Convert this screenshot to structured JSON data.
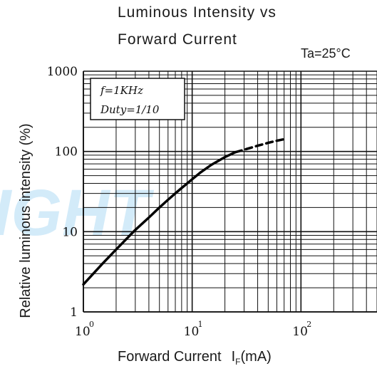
{
  "chart_data": {
    "type": "line",
    "title_lines": [
      "Luminous Intensity vs",
      "Forward Current"
    ],
    "condition": "Ta=25°C",
    "xlabel": "Forward Current",
    "xlabel_symbol": "I",
    "xlabel_sub": "F",
    "xlabel_unit": "(mA)",
    "ylabel": "Relative luminous intensity (%)",
    "x_scale": "log",
    "y_scale": "log",
    "xlim": [
      1,
      500
    ],
    "ylim": [
      1,
      1000
    ],
    "x_ticks": [
      {
        "base": "10",
        "exp": "0",
        "value": 1
      },
      {
        "base": "10",
        "exp": "1",
        "value": 10
      },
      {
        "base": "10",
        "exp": "2",
        "value": 100
      }
    ],
    "y_ticks": [
      {
        "label": "1",
        "value": 1
      },
      {
        "label": "10",
        "value": 10
      },
      {
        "label": "100",
        "value": 100
      },
      {
        "label": "1000",
        "value": 1000
      }
    ],
    "grid": true,
    "legend_lines": [
      "f=1KHz",
      "Duty=1/10"
    ],
    "legend_position": "top-left",
    "series": [
      {
        "style": "solid",
        "x": [
          1,
          1.5,
          2,
          3,
          4,
          5,
          6,
          7,
          8,
          10,
          12,
          15,
          20,
          25
        ],
        "y": [
          2.2,
          4.0,
          6.0,
          10.5,
          15.0,
          20.0,
          25.0,
          30.0,
          35.0,
          45.0,
          55.0,
          68.0,
          85.0,
          98.0
        ]
      },
      {
        "style": "dashed",
        "x": [
          25,
          30,
          40,
          50,
          60,
          70
        ],
        "y": [
          98.0,
          105.0,
          118.0,
          128.0,
          136.0,
          142.0
        ]
      }
    ],
    "watermark": "IGHT",
    "colors": {
      "grid": "#111111",
      "curve": "#000000",
      "watermark": "#9fd3f2"
    }
  }
}
